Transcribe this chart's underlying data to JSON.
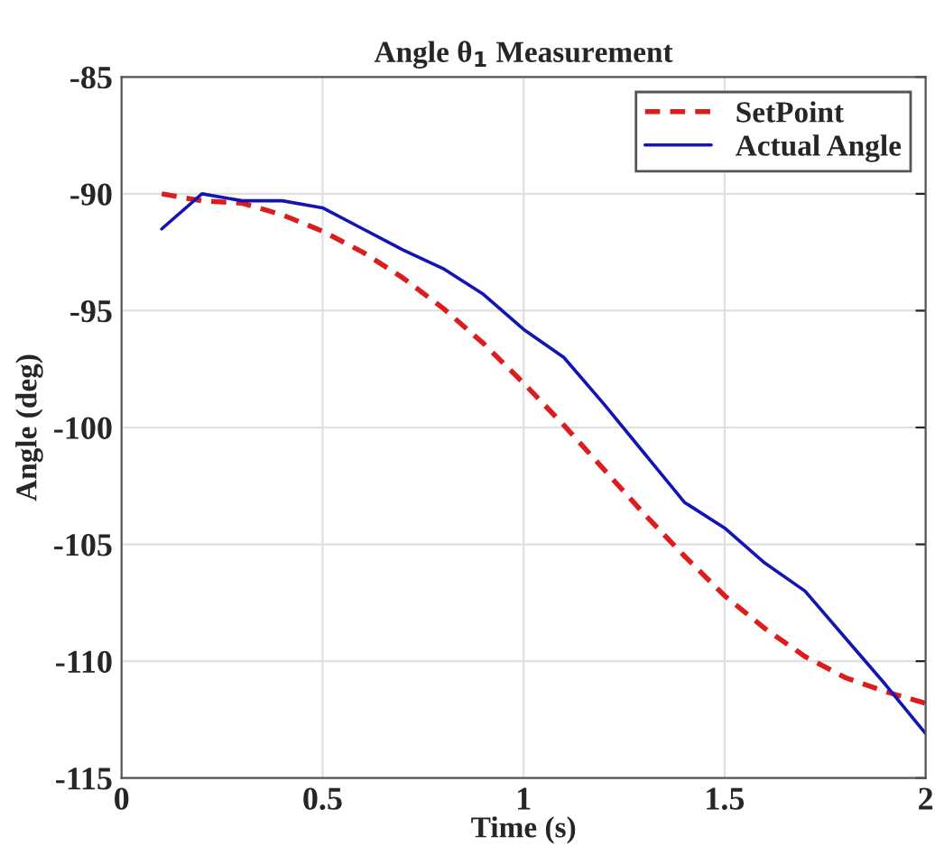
{
  "chart_data": {
    "type": "line",
    "title": "Angle θ$_{1}$ Measurement",
    "xlabel": "Time (s)",
    "ylabel": "Angle (deg)",
    "x": [
      0.1,
      0.2,
      0.3,
      0.4,
      0.5,
      0.6,
      0.7,
      0.8,
      0.9,
      1.0,
      1.1,
      1.2,
      1.3,
      1.4,
      1.5,
      1.6,
      1.7,
      1.8,
      1.9,
      2.0
    ],
    "series": [
      {
        "name": "SetPoint",
        "color": "#dd1c1c",
        "line_style": "dashed",
        "values": [
          -90,
          -90.3,
          -90.4,
          -90.9,
          -91.6,
          -92.5,
          -93.6,
          -94.9,
          -96.4,
          -98.1,
          -99.9,
          -101.8,
          -103.7,
          -105.5,
          -107.2,
          -108.6,
          -109.8,
          -110.7,
          -111.3,
          -111.8
        ]
      },
      {
        "name": "Actual Angle",
        "color": "#1414b4",
        "line_style": "solid",
        "values": [
          -91.5,
          -90,
          -90.3,
          -90.3,
          -90.6,
          -91.5,
          -92.4,
          -93.2,
          -94.3,
          -95.8,
          -97,
          -99,
          -101.1,
          -103.2,
          -104.3,
          -105.8,
          -107,
          -109,
          -111,
          -113.1
        ]
      }
    ],
    "xlim": [
      0,
      2
    ],
    "ylim": [
      -115,
      -85
    ],
    "xticks": [
      0,
      0.5,
      1,
      1.5,
      2
    ],
    "yticks": [
      -115,
      -110,
      -105,
      -100,
      -95,
      -90,
      -85
    ],
    "grid": true,
    "legend": "top right",
    "marker": "none"
  }
}
